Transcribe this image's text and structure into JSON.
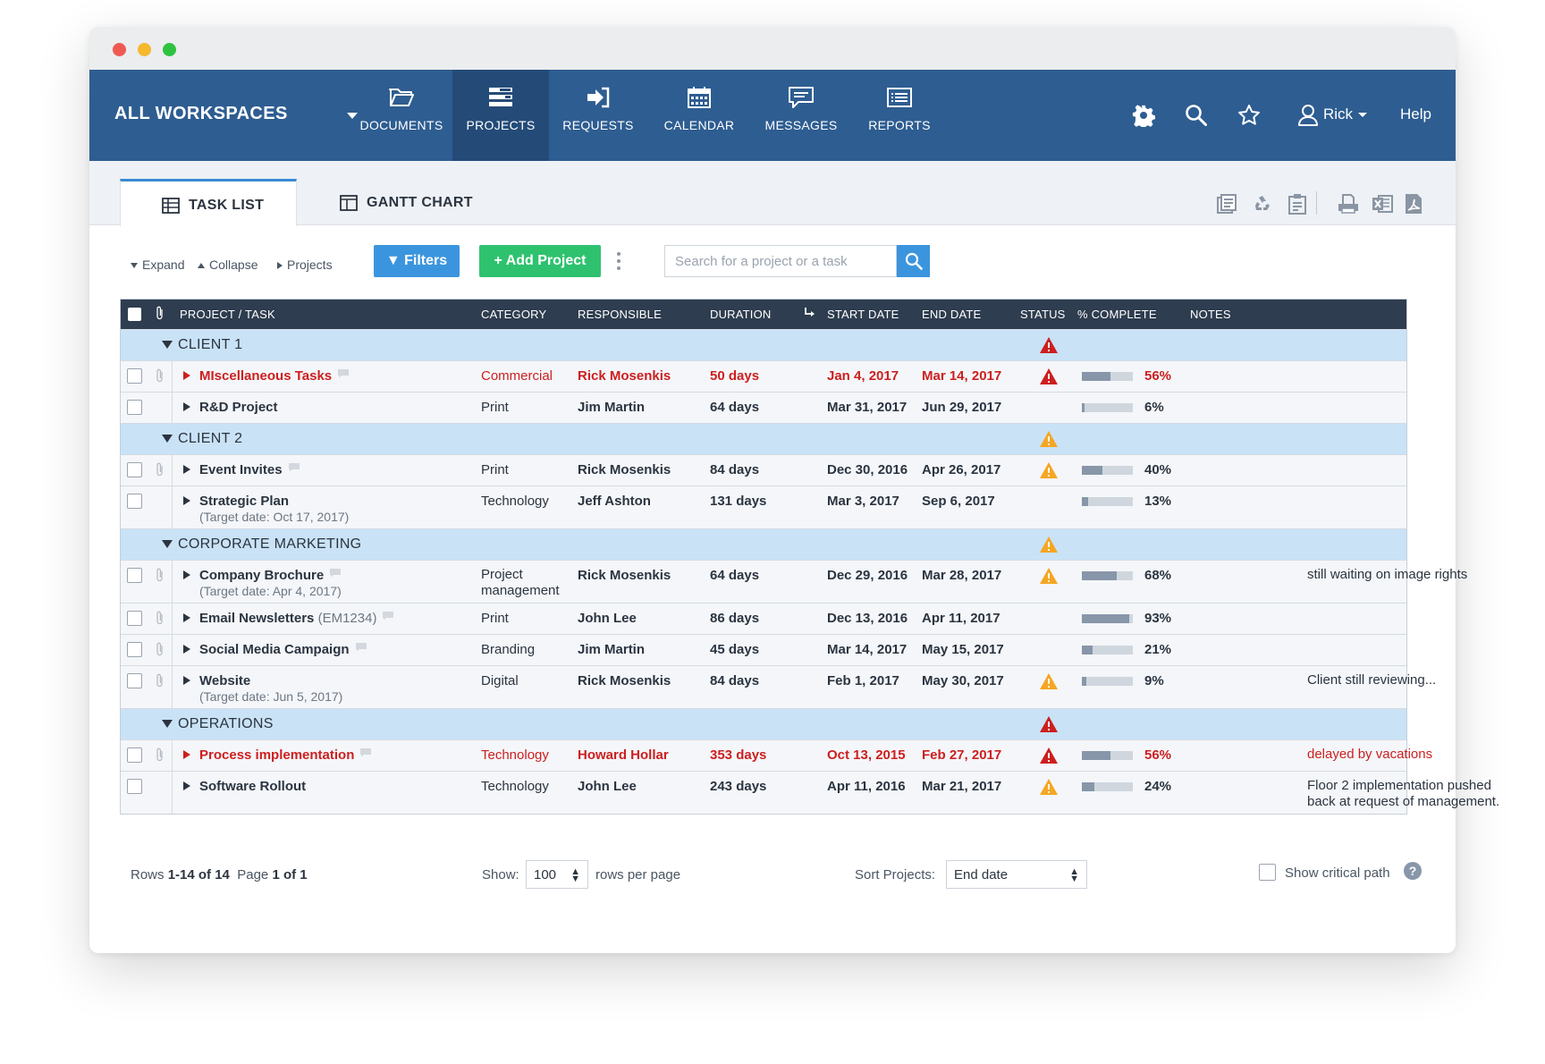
{
  "workspace": {
    "label": "ALL WORKSPACES"
  },
  "nav": {
    "items": [
      {
        "label": "DOCUMENTS",
        "icon": "folder-icon"
      },
      {
        "label": "PROJECTS",
        "icon": "projects-icon",
        "active": true
      },
      {
        "label": "REQUESTS",
        "icon": "sign-in-icon"
      },
      {
        "label": "CALENDAR",
        "icon": "calendar-icon"
      },
      {
        "label": "MESSAGES",
        "icon": "chat-icon"
      },
      {
        "label": "REPORTS",
        "icon": "list-icon"
      }
    ],
    "user": "Rick",
    "help": "Help"
  },
  "tabs": {
    "task_list": "TASK LIST",
    "gantt": "GANTT CHART"
  },
  "toolbar": {
    "expand": "Expand",
    "collapse": "Collapse",
    "projects": "Projects",
    "filters": "Filters",
    "add_project": "Add Project",
    "search_placeholder": "Search for a project or a task"
  },
  "columns": {
    "project": "PROJECT / TASK",
    "category": "CATEGORY",
    "responsible": "RESPONSIBLE",
    "duration": "DURATION",
    "start": "START DATE",
    "end": "END DATE",
    "status": "STATUS",
    "complete": "% COMPLETE",
    "notes": "NOTES"
  },
  "groups": {
    "client1": {
      "name": "CLIENT 1",
      "status": "critical",
      "tasks": [
        {
          "name": "MIscellaneous Tasks",
          "category": "Commercial",
          "responsible": "Rick Mosenkis",
          "duration": "50 days",
          "start": "Jan 4, 2017",
          "end": "Mar 14, 2017",
          "status": "critical",
          "complete": 0.56,
          "pct": "56%",
          "notes": ""
        },
        {
          "name": "R&D Project",
          "category": "Print",
          "responsible": "Jim Martin",
          "duration": "64 days",
          "start": "Mar 31, 2017",
          "end": "Jun 29, 2017",
          "status": "",
          "complete": 0.06,
          "pct": "6%",
          "notes": ""
        }
      ]
    },
    "client2": {
      "name": "CLIENT 2",
      "status": "warning",
      "tasks": [
        {
          "name": "Event Invites",
          "category": "Print",
          "responsible": "Rick Mosenkis",
          "duration": "84 days",
          "start": "Dec 30, 2016",
          "end": "Apr 26, 2017",
          "status": "warning",
          "complete": 0.4,
          "pct": "40%",
          "notes": ""
        },
        {
          "name": "Strategic Plan",
          "target": "(Target date: Oct 17, 2017)",
          "category": "Technology",
          "responsible": "Jeff Ashton",
          "duration": "131 days",
          "start": "Mar 3, 2017",
          "end": "Sep 6, 2017",
          "status": "",
          "complete": 0.13,
          "pct": "13%",
          "notes": ""
        }
      ]
    },
    "corp": {
      "name": "CORPORATE MARKETING",
      "status": "warning",
      "tasks": [
        {
          "name": "Company Brochure",
          "target": "(Target date: Apr 4, 2017)",
          "category_line1": "Project",
          "category_line2": "management",
          "responsible": "Rick Mosenkis",
          "duration": "64 days",
          "start": "Dec 29, 2016",
          "end": "Mar 28, 2017",
          "status": "warning",
          "complete": 0.68,
          "pct": "68%",
          "notes": "still waiting on image rights"
        },
        {
          "name": "Email Newsletters",
          "code": "(EM1234)",
          "category": "Print",
          "responsible": "John Lee",
          "duration": "86 days",
          "start": "Dec 13, 2016",
          "end": "Apr 11, 2017",
          "status": "",
          "complete": 0.93,
          "pct": "93%",
          "notes": ""
        },
        {
          "name": "Social Media Campaign",
          "category": "Branding",
          "responsible": "Jim Martin",
          "duration": "45 days",
          "start": "Mar 14, 2017",
          "end": "May 15, 2017",
          "status": "",
          "complete": 0.21,
          "pct": "21%",
          "notes": ""
        },
        {
          "name": "Website",
          "target": "(Target date: Jun 5, 2017)",
          "category": "Digital",
          "responsible": "Rick Mosenkis",
          "duration": "84 days",
          "start": "Feb 1, 2017",
          "end": "May 30, 2017",
          "status": "warning",
          "complete": 0.09,
          "pct": "9%",
          "notes": "Client still reviewing..."
        }
      ]
    },
    "ops": {
      "name": "OPERATIONS",
      "status": "critical",
      "tasks": [
        {
          "name": "Process implementation",
          "category": "Technology",
          "responsible": "Howard Hollar",
          "duration": "353 days",
          "start": "Oct 13, 2015",
          "end": "Feb 27, 2017",
          "status": "critical",
          "complete": 0.56,
          "pct": "56%",
          "notes": "delayed by vacations"
        },
        {
          "name": "Software Rollout",
          "category": "Technology",
          "responsible": "John Lee",
          "duration": "243 days",
          "start": "Apr 11, 2016",
          "end": "Mar 21, 2017",
          "status": "warning",
          "complete": 0.24,
          "pct": "24%",
          "notes_line1": "Floor 2 implementation pushed",
          "notes_line2": "back at request of management."
        }
      ]
    }
  },
  "footer": {
    "rows_prefix": "Rows",
    "rows_range": "1-14 of 14",
    "page_prefix": "Page",
    "page_value": "1 of 1",
    "show_label": "Show:",
    "show_value": "100",
    "rows_per_page": "rows per page",
    "sort_label": "Sort Projects:",
    "sort_value": "End date",
    "critical_path": "Show critical path",
    "help_mark": "?"
  },
  "colors": {
    "nav": "#2e5d91",
    "critical": "#cc1f1f",
    "warning": "#f5a623",
    "group_row": "#c9e2f6"
  }
}
